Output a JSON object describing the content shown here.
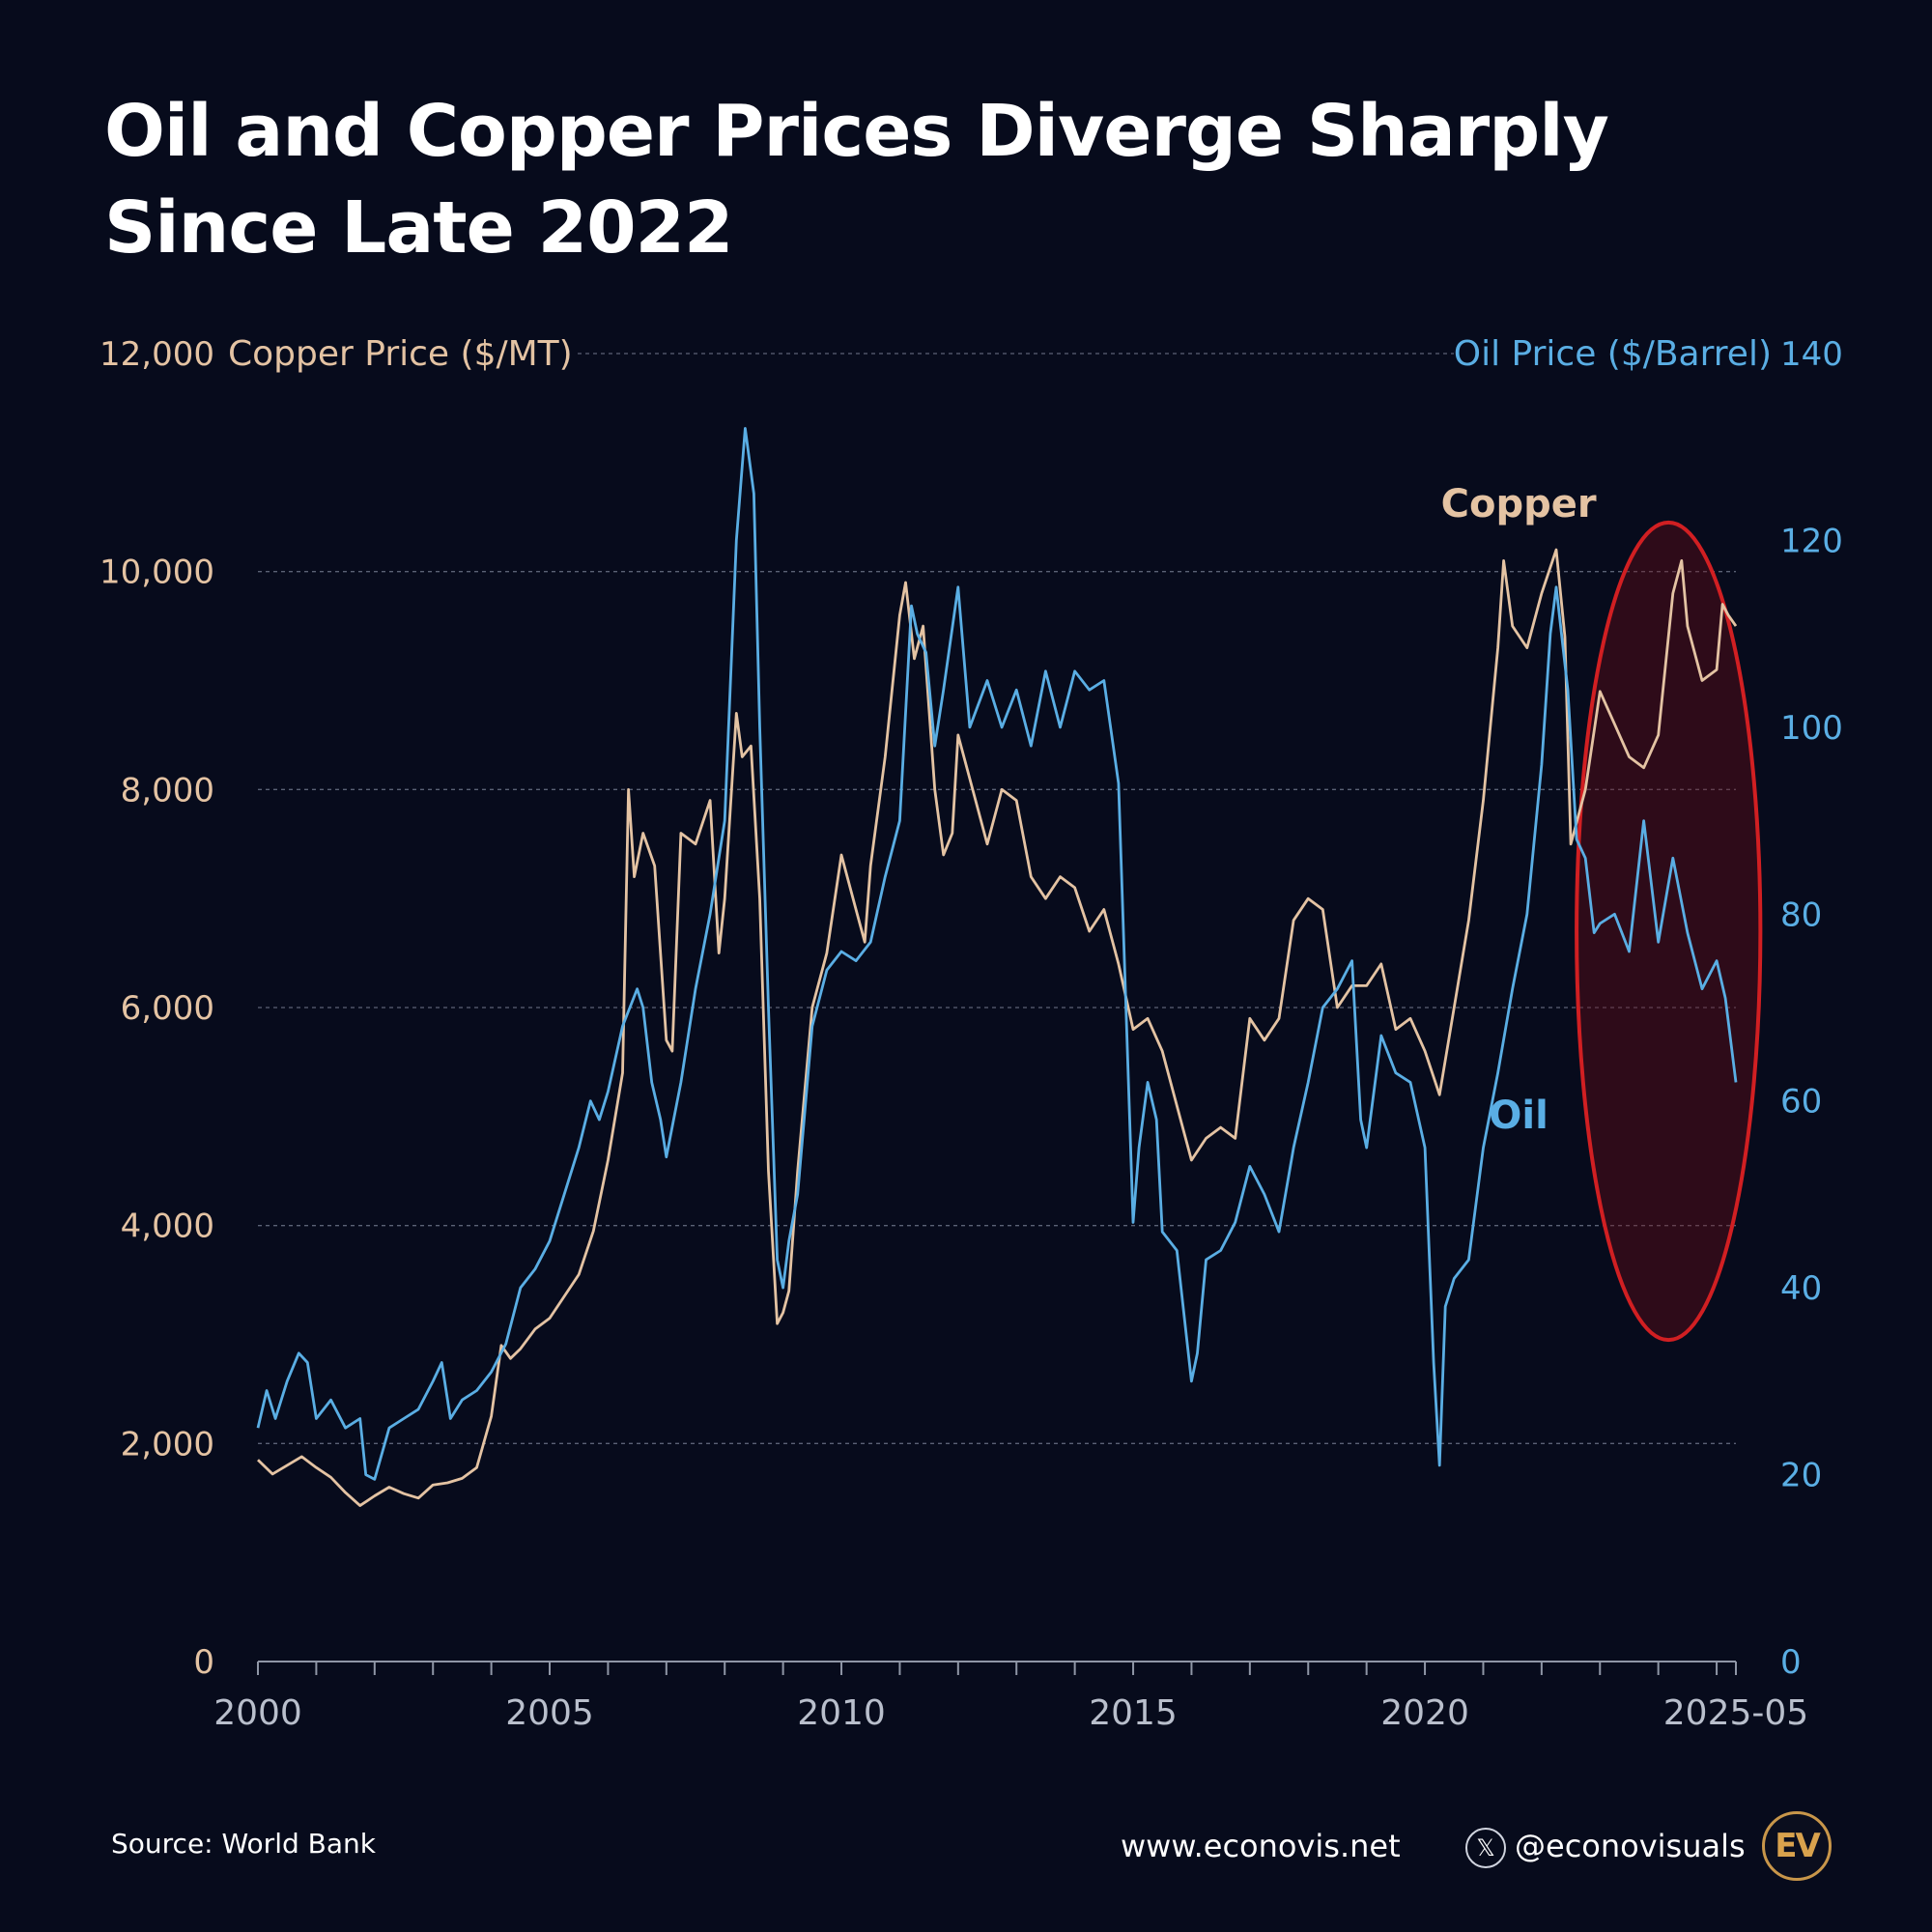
{
  "title_line1": "Oil and Copper Prices Diverge Sharply",
  "title_line2": "Since Late 2022",
  "footer": {
    "source": "Source: World Bank",
    "website": "www.econovis.net",
    "handle": "@econovisuals",
    "x_icon": "x-logo-icon",
    "logo_text": "EV"
  },
  "colors": {
    "background": "#070b1c",
    "copper": "#e4c3a3",
    "oil": "#5aaee4",
    "highlight": "#d11f22",
    "grid": "#5b6275",
    "axis_text": "#b9bfcc"
  },
  "chart_data": {
    "type": "line",
    "left_axis": {
      "label": "Copper Price ($/MT)",
      "range": [
        0,
        12000
      ],
      "ticks": [
        "0",
        "2,000",
        "4,000",
        "6,000",
        "8,000",
        "10,000",
        "12,000"
      ]
    },
    "right_axis": {
      "label": "Oil Price ($/Barrel)",
      "range": [
        0,
        140
      ],
      "ticks": [
        "0",
        "20",
        "40",
        "60",
        "80",
        "100",
        "120",
        "140"
      ]
    },
    "x_axis": {
      "range": [
        2000.0,
        2025.33
      ],
      "tick_labels": [
        "2000",
        "2005",
        "2010",
        "2015",
        "2020",
        "2025-05"
      ],
      "tick_positions": [
        2000,
        2005,
        2010,
        2015,
        2020,
        2025.33
      ]
    },
    "grid": true,
    "annotations": {
      "copper_label": "Copper",
      "oil_label": "Oil",
      "highlight": "ellipse around Nov 2022 – May 2025"
    },
    "series": [
      {
        "name": "Copper",
        "axis": "left",
        "x": [
          2000.0,
          2000.25,
          2000.5,
          2000.75,
          2001.0,
          2001.25,
          2001.5,
          2001.75,
          2002.0,
          2002.25,
          2002.5,
          2002.75,
          2003.0,
          2003.25,
          2003.5,
          2003.75,
          2004.0,
          2004.17,
          2004.33,
          2004.5,
          2004.75,
          2005.0,
          2005.25,
          2005.5,
          2005.75,
          2006.0,
          2006.25,
          2006.35,
          2006.45,
          2006.6,
          2006.8,
          2007.0,
          2007.1,
          2007.25,
          2007.5,
          2007.75,
          2007.9,
          2008.0,
          2008.2,
          2008.3,
          2008.45,
          2008.6,
          2008.75,
          2008.9,
          2009.0,
          2009.1,
          2009.25,
          2009.5,
          2009.75,
          2010.0,
          2010.25,
          2010.4,
          2010.5,
          2010.75,
          2011.0,
          2011.1,
          2011.25,
          2011.4,
          2011.6,
          2011.75,
          2011.9,
          2012.0,
          2012.25,
          2012.5,
          2012.75,
          2013.0,
          2013.25,
          2013.5,
          2013.75,
          2014.0,
          2014.25,
          2014.5,
          2014.75,
          2015.0,
          2015.25,
          2015.5,
          2015.75,
          2016.0,
          2016.25,
          2016.5,
          2016.75,
          2017.0,
          2017.25,
          2017.5,
          2017.75,
          2018.0,
          2018.25,
          2018.5,
          2018.75,
          2019.0,
          2019.25,
          2019.5,
          2019.75,
          2020.0,
          2020.25,
          2020.5,
          2020.75,
          2021.0,
          2021.25,
          2021.35,
          2021.5,
          2021.75,
          2022.0,
          2022.25,
          2022.4,
          2022.5,
          2022.75,
          2023.0,
          2023.25,
          2023.5,
          2023.75,
          2024.0,
          2024.25,
          2024.4,
          2024.5,
          2024.75,
          2025.0,
          2025.1,
          2025.2,
          2025.33
        ],
        "values": [
          1850,
          1720,
          1800,
          1880,
          1780,
          1690,
          1550,
          1430,
          1520,
          1600,
          1540,
          1500,
          1620,
          1640,
          1680,
          1780,
          2250,
          2900,
          2780,
          2870,
          3050,
          3150,
          3350,
          3550,
          3950,
          4600,
          5400,
          8000,
          7200,
          7600,
          7300,
          5700,
          5600,
          7600,
          7500,
          7900,
          6500,
          7000,
          8700,
          8300,
          8400,
          7000,
          4500,
          3100,
          3200,
          3400,
          4500,
          6000,
          6500,
          7400,
          6900,
          6600,
          7300,
          8300,
          9600,
          9900,
          9200,
          9500,
          8000,
          7400,
          7600,
          8500,
          8000,
          7500,
          8000,
          7900,
          7200,
          7000,
          7200,
          7100,
          6700,
          6900,
          6400,
          5800,
          5900,
          5600,
          5100,
          4600,
          4800,
          4900,
          4800,
          5900,
          5700,
          5900,
          6800,
          7000,
          6900,
          6000,
          6200,
          6200,
          6400,
          5800,
          5900,
          5600,
          5200,
          6000,
          6800,
          7900,
          9300,
          10100,
          9500,
          9300,
          9800,
          10200,
          9400,
          7500,
          8000,
          8900,
          8600,
          8300,
          8200,
          8500,
          9800,
          10100,
          9500,
          9000,
          9100,
          9700,
          9600,
          9500
        ]
      },
      {
        "name": "Oil",
        "axis": "right",
        "x": [
          2000.0,
          2000.15,
          2000.3,
          2000.5,
          2000.7,
          2000.85,
          2001.0,
          2001.25,
          2001.5,
          2001.75,
          2001.85,
          2002.0,
          2002.25,
          2002.5,
          2002.75,
          2003.0,
          2003.15,
          2003.3,
          2003.5,
          2003.75,
          2004.0,
          2004.25,
          2004.5,
          2004.75,
          2005.0,
          2005.25,
          2005.5,
          2005.7,
          2005.85,
          2006.0,
          2006.25,
          2006.5,
          2006.6,
          2006.75,
          2006.9,
          2007.0,
          2007.25,
          2007.5,
          2007.75,
          2008.0,
          2008.2,
          2008.35,
          2008.5,
          2008.6,
          2008.75,
          2008.9,
          2009.0,
          2009.1,
          2009.25,
          2009.5,
          2009.75,
          2010.0,
          2010.25,
          2010.5,
          2010.75,
          2011.0,
          2011.2,
          2011.3,
          2011.45,
          2011.6,
          2011.75,
          2012.0,
          2012.2,
          2012.5,
          2012.75,
          2013.0,
          2013.25,
          2013.5,
          2013.75,
          2014.0,
          2014.25,
          2014.5,
          2014.75,
          2015.0,
          2015.1,
          2015.25,
          2015.4,
          2015.5,
          2015.75,
          2016.0,
          2016.1,
          2016.25,
          2016.5,
          2016.75,
          2017.0,
          2017.25,
          2017.5,
          2017.75,
          2018.0,
          2018.25,
          2018.5,
          2018.75,
          2018.9,
          2019.0,
          2019.25,
          2019.5,
          2019.75,
          2020.0,
          2020.15,
          2020.25,
          2020.35,
          2020.5,
          2020.75,
          2021.0,
          2021.25,
          2021.5,
          2021.75,
          2022.0,
          2022.15,
          2022.25,
          2022.45,
          2022.6,
          2022.75,
          2022.9,
          2023.0,
          2023.25,
          2023.5,
          2023.75,
          2024.0,
          2024.25,
          2024.5,
          2024.75,
          2025.0,
          2025.15,
          2025.33
        ],
        "values": [
          25,
          29,
          26,
          30,
          33,
          32,
          26,
          28,
          25,
          26,
          20,
          19.5,
          25,
          26,
          27,
          30,
          32,
          26,
          28,
          29,
          31,
          34,
          40,
          42,
          45,
          50,
          55,
          60,
          58,
          61,
          68,
          72,
          70,
          62,
          58,
          54,
          62,
          72,
          80,
          90,
          120,
          132,
          125,
          100,
          70,
          43,
          40,
          45,
          50,
          68,
          74,
          76,
          75,
          77,
          84,
          90,
          113,
          110,
          108,
          98,
          104,
          115,
          100,
          105,
          100,
          104,
          98,
          106,
          100,
          106,
          104,
          105,
          94,
          47,
          55,
          62,
          58,
          46,
          44,
          30,
          33,
          43,
          44,
          47,
          53,
          50,
          46,
          55,
          62,
          70,
          72,
          75,
          58,
          55,
          67,
          63,
          62,
          55,
          32,
          21,
          38,
          41,
          43,
          55,
          63,
          72,
          80,
          96,
          110,
          115,
          104,
          88,
          86,
          78,
          79,
          80,
          76,
          90,
          77,
          86,
          78,
          72,
          75,
          71,
          62
        ]
      }
    ]
  }
}
